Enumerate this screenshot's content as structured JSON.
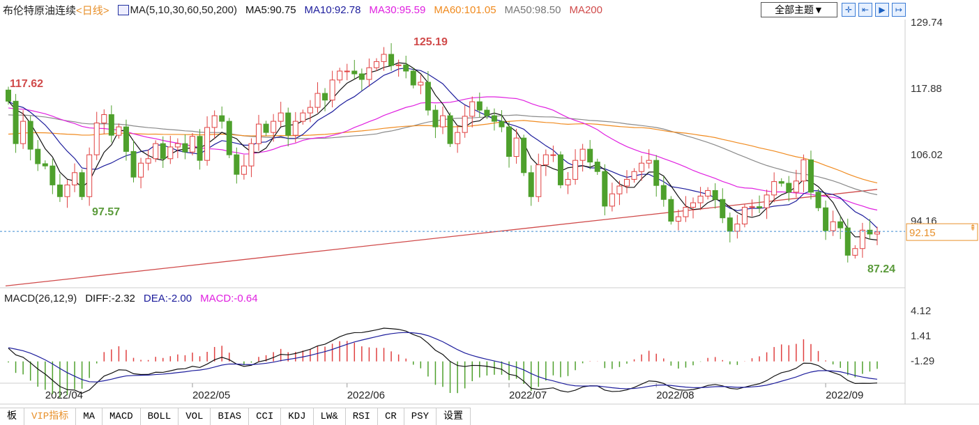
{
  "header": {
    "title": "布伦特原油连续",
    "period": "<日线>",
    "ma_params": "MA(5,10,30,60,50,200)",
    "ma5": "MA5:90.75",
    "ma10": "MA10:92.78",
    "ma30": "MA30:95.59",
    "ma60": "MA60:101.05",
    "ma50": "MA50:98.50",
    "ma200": "MA200",
    "theme_button": "全部主题▼"
  },
  "toolbar": [
    "crosshair-icon",
    "zoom-in-icon",
    "zoom-out-icon",
    "scroll-right-icon"
  ],
  "macd_header": {
    "params": "MACD(26,12,9)",
    "diff": "DIFF:-2.32",
    "dea": "DEA:-2.00",
    "macd": "MACD:-0.64"
  },
  "tabs": [
    "板",
    "VIP指标",
    "MA",
    "MACD",
    "BOLL",
    "VOL",
    "BIAS",
    "CCI",
    "KDJ",
    "LW&",
    "RSI",
    "CR",
    "PSY",
    "设置"
  ],
  "colors": {
    "up": "#e04040",
    "down": "#4ea02c",
    "ma5": "#111111",
    "ma10": "#1c1c9c",
    "ma30": "#e020e0",
    "ma60": "#f08a1e",
    "ma50": "#8a8a8a",
    "ma200": "#d04a4a",
    "current": "#e8902a"
  },
  "chart_data": {
    "type": "candlestick",
    "price_axis_ticks": [
      "129.74",
      "117.88",
      "106.02",
      "94.16"
    ],
    "price_range": [
      129.74,
      94.16
    ],
    "macd_axis_ticks": [
      "4.12",
      "1.41",
      "-1.29"
    ],
    "date_labels": [
      "2022/04",
      "2022/05",
      "2022/06",
      "2022/07",
      "2022/08",
      "2022/09"
    ],
    "date_label_index": [
      5,
      25,
      46,
      68,
      88,
      111
    ],
    "annotations": {
      "high": "125.19",
      "start_high": "117.62",
      "low1": "97.57",
      "low2": "87.24"
    },
    "current_price": "92.15",
    "ma200_range": [
      82.5,
      99.8
    ],
    "first_open": 117.6,
    "closes": [
      115.6,
      108,
      112,
      107,
      104.4,
      104,
      100.6,
      98.5,
      100.6,
      102.8,
      98.5,
      106,
      111.7,
      113.2,
      109.5,
      111,
      106.6,
      102,
      104.5,
      105.3,
      108,
      105.3,
      107.4,
      108,
      106.5,
      109.3,
      105,
      110.9,
      113,
      112,
      106,
      102.5,
      104,
      108,
      111.5,
      110,
      112,
      113.5,
      109.5,
      112,
      113.5,
      114.5,
      117,
      115.8,
      119.4,
      121,
      121,
      120.5,
      119.5,
      121.6,
      122.7,
      124,
      122,
      122.1,
      121,
      118.5,
      119,
      114,
      111,
      113,
      108,
      110,
      112.9,
      115.5,
      114,
      113,
      112,
      111,
      105.7,
      109,
      102.8,
      98.5,
      104.2,
      106,
      106,
      100.6,
      101.6,
      105,
      107,
      104.7,
      103,
      96.8,
      99,
      100.4,
      101.6,
      103,
      104.5,
      105,
      100.5,
      98,
      94.1,
      94.9,
      96.6,
      97.4,
      98.6,
      99.6,
      98,
      94.7,
      92.3,
      93.6,
      96.6,
      96.7,
      96.5,
      98.8,
      101.2,
      100.9,
      99.3,
      101.3,
      105.1,
      99.3,
      96.5,
      92.4,
      94,
      92.9,
      88,
      89.2,
      92.5,
      91.8,
      92.15
    ]
  }
}
